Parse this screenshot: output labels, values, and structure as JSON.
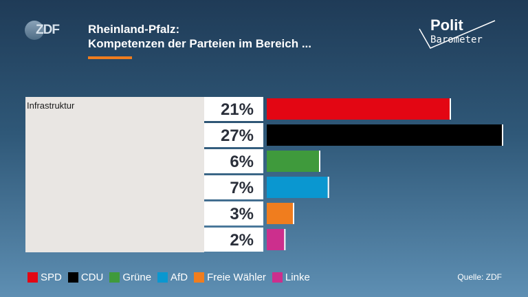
{
  "header": {
    "title_line1": "Rheinland-Pfalz:",
    "title_line2": "Kompetenzen der Parteien im Bereich ...",
    "logo_text": "ZDF",
    "brand_line1": "Polit",
    "brand_line2": "Barometer"
  },
  "source": "Quelle: ZDF",
  "chart_data": {
    "type": "bar",
    "orientation": "horizontal",
    "category_label": "Infrastruktur",
    "categories": [
      "SPD",
      "CDU",
      "Grüne",
      "AfD",
      "Freie Wähler",
      "Linke"
    ],
    "values": [
      21,
      27,
      6,
      7,
      3,
      2
    ],
    "value_labels": [
      "21%",
      "27%",
      "6%",
      "7%",
      "3%",
      "2%"
    ],
    "colors": [
      "#e30613",
      "#000000",
      "#3f9a3c",
      "#0a97d0",
      "#f07d1e",
      "#cc2f8d"
    ],
    "xlim": [
      0,
      27
    ],
    "legend_position": "bottom-left",
    "grid": false
  }
}
